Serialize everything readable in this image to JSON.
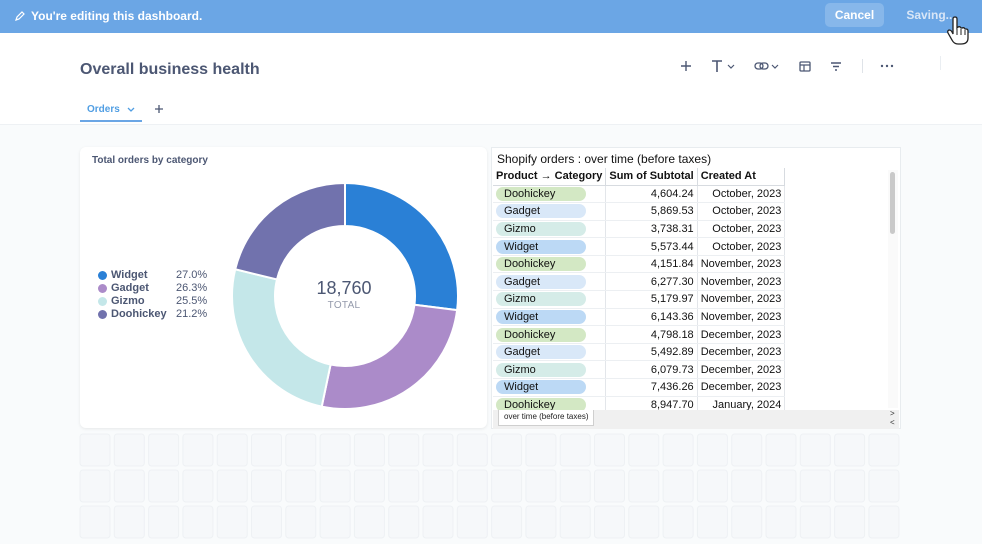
{
  "banner": {
    "message": "You're editing this dashboard.",
    "cancel_label": "Cancel",
    "save_label": "Saving..."
  },
  "dashboard": {
    "title": "Overall business health"
  },
  "tabs": [
    {
      "label": "Orders",
      "active": true
    }
  ],
  "toolbar": {
    "icons": [
      "add-icon",
      "text-icon",
      "link-icon",
      "section-icon",
      "filter-icon",
      "more-icon"
    ]
  },
  "donut_card": {
    "title": "Total orders by category",
    "total_value": "18,760",
    "total_label": "TOTAL",
    "legend": [
      {
        "name": "Widget",
        "pct": "27.0%",
        "color": "#2a80d6"
      },
      {
        "name": "Gadget",
        "pct": "26.3%",
        "color": "#ab8bc9"
      },
      {
        "name": "Gizmo",
        "pct": "25.5%",
        "color": "#c4e7e9"
      },
      {
        "name": "Doohickey",
        "pct": "21.2%",
        "color": "#7172ad"
      }
    ]
  },
  "chart_data": {
    "type": "pie",
    "title": "Total orders by category",
    "categories": [
      "Widget",
      "Gadget",
      "Gizmo",
      "Doohickey"
    ],
    "values": [
      27.0,
      26.3,
      25.5,
      21.2
    ],
    "total": 18760,
    "legend": "left"
  },
  "table_card": {
    "title": "Shopify orders : over time (before taxes)",
    "columns": [
      "Product → Category",
      "Sum of Subtotal",
      "Created At"
    ],
    "rows": [
      [
        "Doohickey",
        "4,604.24",
        "October, 2023"
      ],
      [
        "Gadget",
        "5,869.53",
        "October, 2023"
      ],
      [
        "Gizmo",
        "3,738.31",
        "October, 2023"
      ],
      [
        "Widget",
        "5,573.44",
        "October, 2023"
      ],
      [
        "Doohickey",
        "4,151.84",
        "November, 2023"
      ],
      [
        "Gadget",
        "6,277.30",
        "November, 2023"
      ],
      [
        "Gizmo",
        "5,179.97",
        "November, 2023"
      ],
      [
        "Widget",
        "6,143.36",
        "November, 2023"
      ],
      [
        "Doohickey",
        "4,798.18",
        "December, 2023"
      ],
      [
        "Gadget",
        "5,492.89",
        "December, 2023"
      ],
      [
        "Gizmo",
        "6,079.73",
        "December, 2023"
      ],
      [
        "Widget",
        "7,436.26",
        "December, 2023"
      ],
      [
        "Doohickey",
        "8,947.70",
        "January, 2024"
      ]
    ],
    "pill_colors": {
      "Doohickey": "#d3e8c4",
      "Gadget": "#d9e8f8",
      "Gizmo": "#d5ece8",
      "Widget": "#bcd9f5"
    },
    "sheet_tab": "over time (before taxes)",
    "scroll_right": ">",
    "scroll_left": "<"
  }
}
